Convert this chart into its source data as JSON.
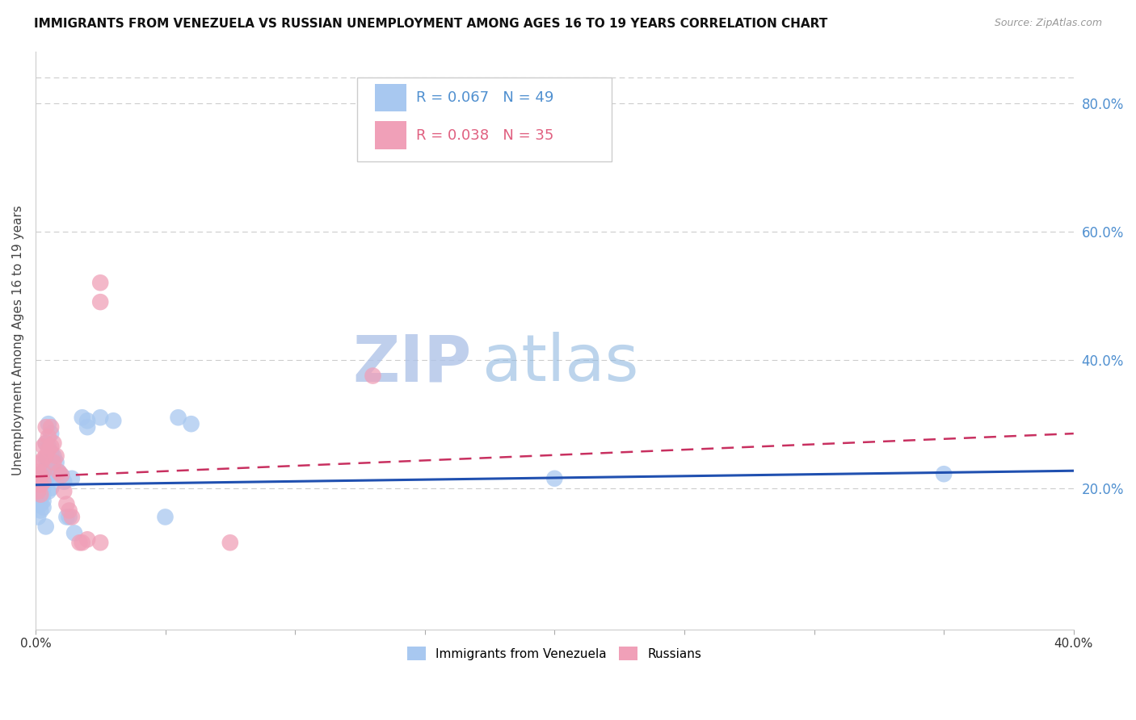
{
  "title": "IMMIGRANTS FROM VENEZUELA VS RUSSIAN UNEMPLOYMENT AMONG AGES 16 TO 19 YEARS CORRELATION CHART",
  "source": "Source: ZipAtlas.com",
  "ylabel": "Unemployment Among Ages 16 to 19 years",
  "right_yticks": [
    "20.0%",
    "40.0%",
    "60.0%",
    "80.0%"
  ],
  "right_ytick_vals": [
    0.2,
    0.4,
    0.6,
    0.8
  ],
  "x_range": [
    0.0,
    0.4
  ],
  "y_range": [
    -0.02,
    0.88
  ],
  "legend1_label": "Immigrants from Venezuela",
  "legend2_label": "Russians",
  "R1": "0.067",
  "N1": "49",
  "R2": "0.038",
  "N2": "35",
  "color_blue": "#A8C8F0",
  "color_pink": "#F0A0B8",
  "color_blue_text": "#5090D0",
  "color_pink_text": "#E06080",
  "color_trendline_blue": "#2050B0",
  "color_trendline_pink": "#C83060",
  "watermark_color": "#C8D8F0",
  "scatter_blue": [
    [
      0.001,
      0.195
    ],
    [
      0.001,
      0.185
    ],
    [
      0.001,
      0.175
    ],
    [
      0.002,
      0.22
    ],
    [
      0.002,
      0.205
    ],
    [
      0.002,
      0.195
    ],
    [
      0.002,
      0.185
    ],
    [
      0.002,
      0.175
    ],
    [
      0.002,
      0.165
    ],
    [
      0.003,
      0.21
    ],
    [
      0.003,
      0.2
    ],
    [
      0.003,
      0.19
    ],
    [
      0.003,
      0.18
    ],
    [
      0.003,
      0.17
    ],
    [
      0.004,
      0.27
    ],
    [
      0.004,
      0.245
    ],
    [
      0.004,
      0.23
    ],
    [
      0.004,
      0.215
    ],
    [
      0.005,
      0.3
    ],
    [
      0.005,
      0.265
    ],
    [
      0.005,
      0.24
    ],
    [
      0.005,
      0.22
    ],
    [
      0.005,
      0.195
    ],
    [
      0.006,
      0.285
    ],
    [
      0.006,
      0.255
    ],
    [
      0.006,
      0.225
    ],
    [
      0.006,
      0.2
    ],
    [
      0.007,
      0.25
    ],
    [
      0.007,
      0.215
    ],
    [
      0.008,
      0.24
    ],
    [
      0.009,
      0.225
    ],
    [
      0.01,
      0.22
    ],
    [
      0.011,
      0.21
    ],
    [
      0.012,
      0.155
    ],
    [
      0.013,
      0.155
    ],
    [
      0.014,
      0.215
    ],
    [
      0.015,
      0.13
    ],
    [
      0.018,
      0.31
    ],
    [
      0.02,
      0.305
    ],
    [
      0.02,
      0.295
    ],
    [
      0.025,
      0.31
    ],
    [
      0.03,
      0.305
    ],
    [
      0.05,
      0.155
    ],
    [
      0.055,
      0.31
    ],
    [
      0.06,
      0.3
    ],
    [
      0.2,
      0.215
    ],
    [
      0.35,
      0.222
    ],
    [
      0.001,
      0.155
    ],
    [
      0.004,
      0.14
    ]
  ],
  "scatter_pink": [
    [
      0.001,
      0.225
    ],
    [
      0.001,
      0.21
    ],
    [
      0.001,
      0.195
    ],
    [
      0.002,
      0.24
    ],
    [
      0.002,
      0.22
    ],
    [
      0.002,
      0.205
    ],
    [
      0.002,
      0.19
    ],
    [
      0.003,
      0.265
    ],
    [
      0.003,
      0.245
    ],
    [
      0.003,
      0.225
    ],
    [
      0.003,
      0.21
    ],
    [
      0.004,
      0.295
    ],
    [
      0.004,
      0.27
    ],
    [
      0.004,
      0.25
    ],
    [
      0.005,
      0.28
    ],
    [
      0.005,
      0.26
    ],
    [
      0.006,
      0.295
    ],
    [
      0.006,
      0.265
    ],
    [
      0.007,
      0.27
    ],
    [
      0.007,
      0.24
    ],
    [
      0.008,
      0.25
    ],
    [
      0.009,
      0.225
    ],
    [
      0.01,
      0.22
    ],
    [
      0.011,
      0.195
    ],
    [
      0.012,
      0.175
    ],
    [
      0.013,
      0.165
    ],
    [
      0.014,
      0.155
    ],
    [
      0.017,
      0.115
    ],
    [
      0.018,
      0.115
    ],
    [
      0.02,
      0.12
    ],
    [
      0.025,
      0.49
    ],
    [
      0.025,
      0.115
    ],
    [
      0.13,
      0.375
    ],
    [
      0.025,
      0.52
    ],
    [
      0.075,
      0.115
    ]
  ]
}
